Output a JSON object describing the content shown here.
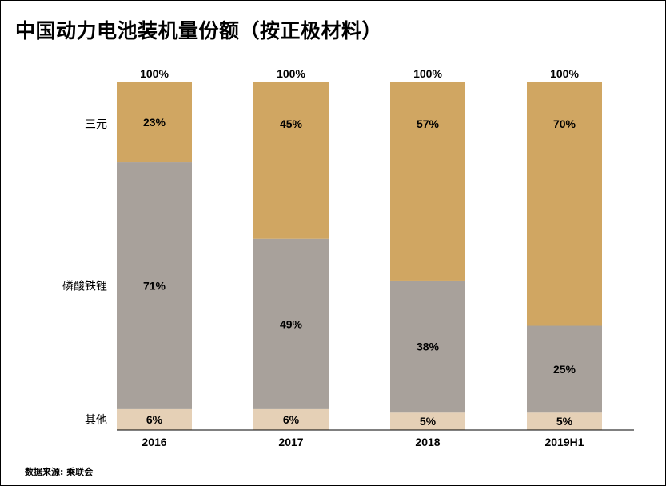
{
  "title": "中国动力电池装机量份额（按正极材料）",
  "source": "数据来源: 乘联会",
  "colors": {
    "三元": "#D0A662",
    "磷酸铁锂": "#A8A19B",
    "其他": "#E5D0B6",
    "axis": "#000000"
  },
  "chart_data": {
    "type": "bar",
    "stacked": true,
    "categories": [
      "2016",
      "2017",
      "2018",
      "2019H1"
    ],
    "series": [
      {
        "name": "其他",
        "values": [
          6,
          6,
          5,
          5
        ],
        "labels": [
          "6%",
          "6%",
          "5%",
          "5%"
        ]
      },
      {
        "name": "磷酸铁锂",
        "values": [
          71,
          49,
          38,
          25
        ],
        "labels": [
          "71%",
          "49%",
          "38%",
          "25%"
        ]
      },
      {
        "name": "三元",
        "values": [
          23,
          45,
          57,
          70
        ],
        "labels": [
          "23%",
          "45%",
          "57%",
          "70%"
        ]
      }
    ],
    "totals": [
      "100%",
      "100%",
      "100%",
      "100%"
    ],
    "ylim": [
      0,
      100
    ],
    "grid": false,
    "legend": "left (series labels beside first bar)"
  }
}
